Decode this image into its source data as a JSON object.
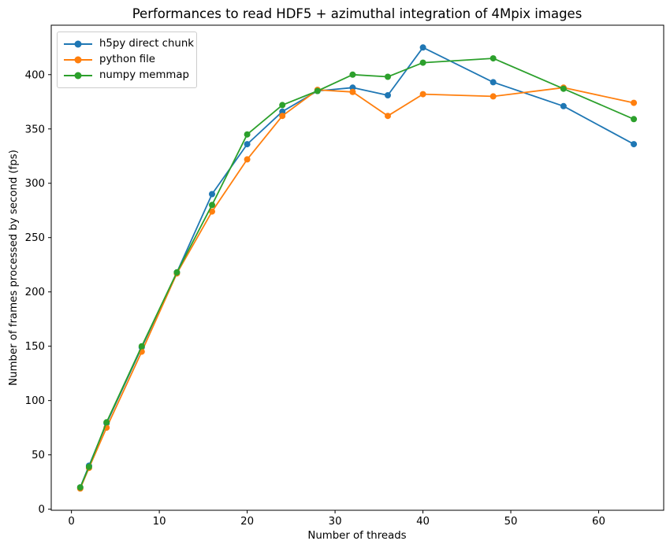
{
  "figure": {
    "background": "#ffffff",
    "text_color": "#000000",
    "spine_color": "#000000"
  },
  "chart_data": {
    "type": "line",
    "title": "Performances to read HDF5 + azimuthal integration of 4Mpix images",
    "xlabel": "Number of threads",
    "ylabel": "Number of frames processed by second (fps)",
    "x": [
      1,
      2,
      4,
      8,
      12,
      16,
      20,
      24,
      28,
      32,
      36,
      40,
      48,
      56,
      64
    ],
    "series": [
      {
        "name": "h5py direct chunk",
        "color": "#1f77b4",
        "values": [
          20,
          40,
          79,
          149,
          218,
          290,
          336,
          366,
          385,
          388,
          381,
          425,
          393,
          371,
          336
        ]
      },
      {
        "name": "python file",
        "color": "#ff7f0e",
        "values": [
          19,
          38,
          75,
          145,
          217,
          274,
          322,
          362,
          386,
          384,
          362,
          382,
          380,
          388,
          374
        ]
      },
      {
        "name": "numpy memmap",
        "color": "#2ca02c",
        "values": [
          20,
          39,
          80,
          150,
          218,
          280,
          345,
          372,
          385,
          400,
          398,
          411,
          415,
          387,
          359
        ]
      }
    ],
    "xticks": [
      0,
      10,
      20,
      30,
      40,
      50,
      60
    ],
    "yticks": [
      0,
      50,
      100,
      150,
      200,
      250,
      300,
      350,
      400
    ],
    "xlim": [
      -2.3,
      67.4
    ],
    "ylim": [
      -1,
      445.5
    ],
    "grid": false,
    "marker": "o",
    "legend_position": "upper left"
  }
}
